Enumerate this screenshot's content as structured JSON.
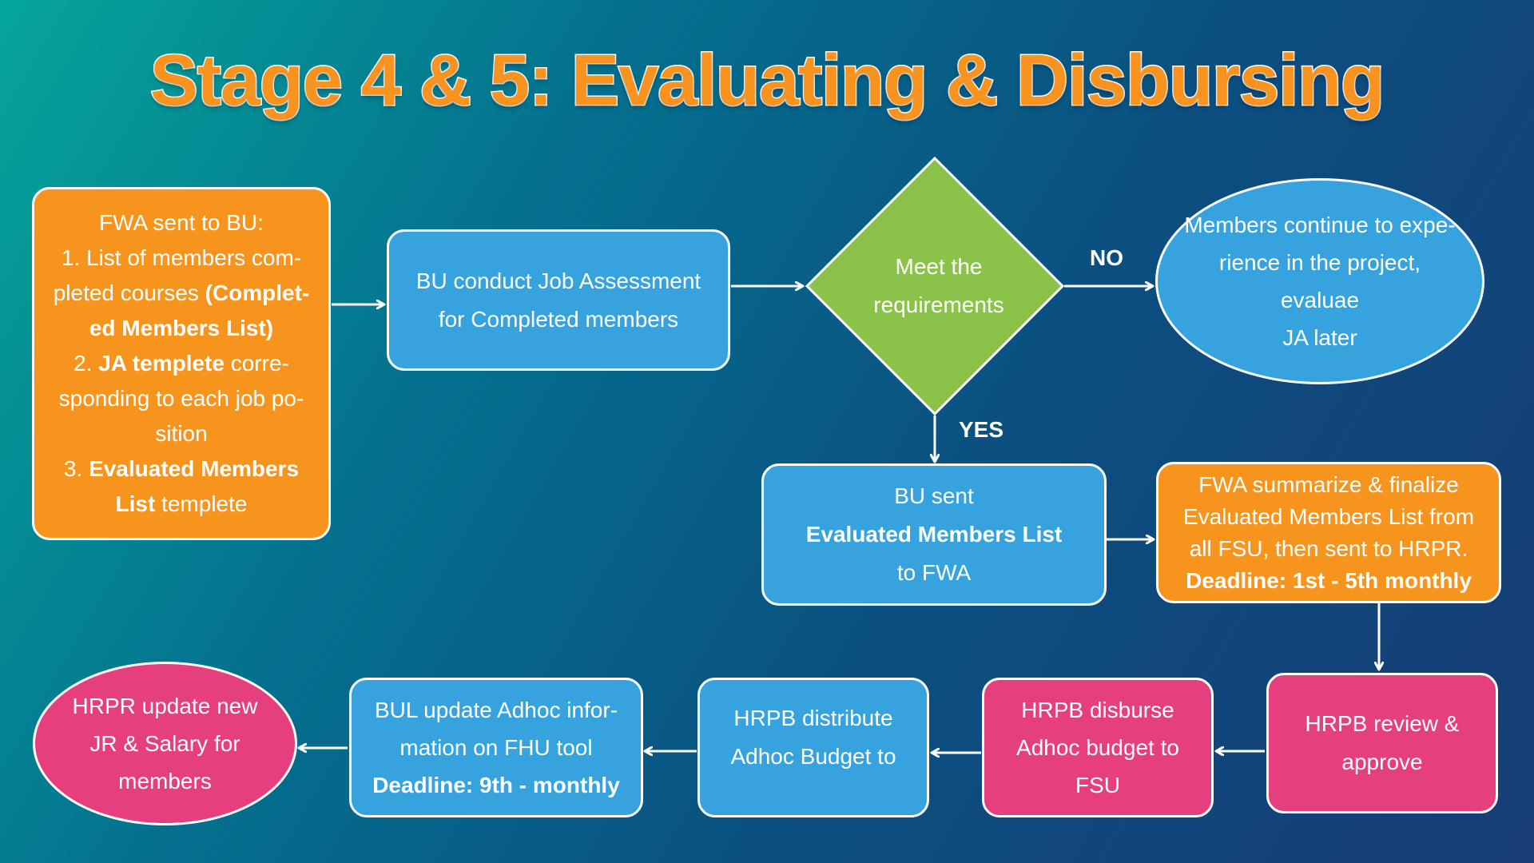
{
  "title": "Stage 4 & 5: Evaluating & Disbursing",
  "colors": {
    "orange": "#f7941d",
    "blue": "#36a3df",
    "pink": "#e63f7e",
    "green": "#8bc34a",
    "title_orange": "#f7931e",
    "background_start": "#05a59a",
    "background_end": "#183c74"
  },
  "nodes": {
    "fwa_sent": {
      "l1": "FWA sent to BU:",
      "l2": "1. List of members com-",
      "l3a": "pleted courses ",
      "l3b": "(Complet-",
      "l4": "ed Members List)",
      "l5a": "2. ",
      "l5b": "JA templete",
      "l5c": " corre-",
      "l6": "sponding to each job po-",
      "l7": "sition",
      "l8a": "3. ",
      "l8b": "Evaluated Members",
      "l9a": "List",
      "l9b": " templete"
    },
    "bu_conduct": {
      "l1": "BU conduct Job Assessment",
      "l2": "for Completed members"
    },
    "decision": {
      "l1": "Meet the",
      "l2": "requirements"
    },
    "members_continue": {
      "l1": "Members continue to expe-",
      "l2": "rience in the project, evaluae",
      "l3": "JA later"
    },
    "bu_sent": {
      "l1": "BU sent",
      "l2": "Evaluated Members List",
      "l3": "to FWA"
    },
    "fwa_summarize": {
      "l1": "FWA summarize & finalize",
      "l2": "Evaluated Members List from",
      "l3": "all FSU, then sent to HRPR.",
      "l4": "Deadline: 1st - 5th monthly"
    },
    "hrpb_review": {
      "l1": "HRPB review &",
      "l2": "approve"
    },
    "hrpb_disburse": {
      "l1": "HRPB disburse",
      "l2": "Adhoc budget to",
      "l3": "FSU"
    },
    "hrpb_distribute": {
      "l1": "HRPB distribute",
      "l2": "Adhoc Budget to"
    },
    "bul_update": {
      "l1": "BUL update Adhoc infor-",
      "l2": "mation on FHU tool",
      "l3": "Deadline: 9th - monthly"
    },
    "hrpr_update": {
      "l1": "HRPR update new",
      "l2": "JR & Salary for",
      "l3": "members"
    }
  },
  "edge_labels": {
    "no": "NO",
    "yes": "YES"
  }
}
